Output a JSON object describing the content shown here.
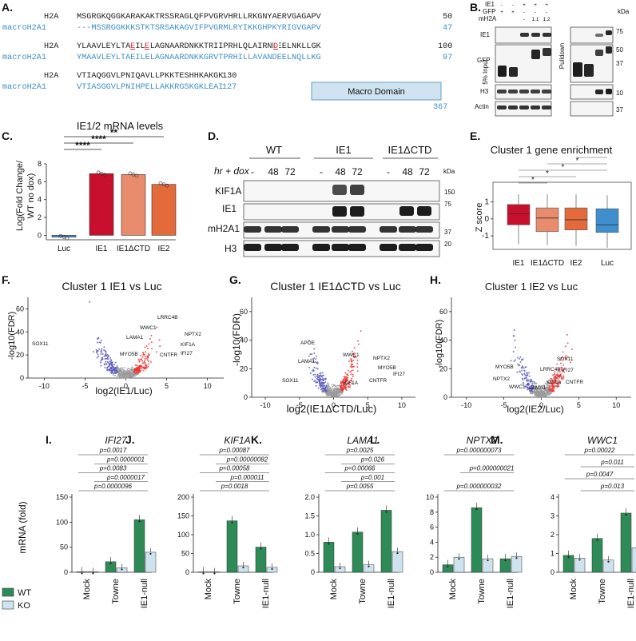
{
  "colors": {
    "h2a": "#222222",
    "macro": "#3e8ec9",
    "red_res": "#e0303b",
    "box_macro": "#cfe2ef",
    "luc": "#3f8fce",
    "ie1": "#c8102e",
    "ie1dctd": "#e98b6d",
    "ie2": "#e26a3b",
    "wt": "#2e8b57",
    "ko": "#cfe3ee",
    "volc_up": "#e63737",
    "volc_down": "#5a5ab8",
    "volc_ns": "#9a9a9a"
  },
  "panelA": {
    "label": "A.",
    "rows": [
      {
        "name": "H2A",
        "seq": "MSGRGKQGGKARAKAKTRSSRAGLQFPVGRVHRLLRKGNYAERVGAGAPV",
        "end": "50"
      },
      {
        "name": "macroH2A1",
        "seq": "---MSSRGGKKKSTKTSRSAKAGVIFPVGRMLRYIKKGHPKYRIGVGAPV",
        "end": "47"
      },
      {
        "name": "H2A",
        "seq": "YLAAVLEYLTAEILELAGNAARDNKKTRIIPRHLQLAIRNDEELNKLLGK",
        "end": "100"
      },
      {
        "name": "macroH2A1",
        "seq": "YMAAVLEYLTAEILELAGNAARDNKKGRVTPRHILLAVANDEELNQLLKG",
        "end": "97"
      },
      {
        "name": "H2A",
        "seq": "VTIAQGGVLPNIQAVLLPKKTESHHKAKGK",
        "end": "130"
      },
      {
        "name": "macroH2A1",
        "seq": "VTIASGGVLPNIHPELLAKKRGSKGKLEAI",
        "end": "127"
      }
    ],
    "macro_domain": "Macro Domain",
    "macro_end": "367"
  },
  "panelB": {
    "label": "B.",
    "row_ie1": "IE1",
    "row_gfp": "GFP",
    "row_mh2a": "mH2A",
    "signs_ie1": [
      "-",
      "-",
      "+",
      "+",
      "+"
    ],
    "signs_gfp": [
      "+",
      "+",
      "-",
      "-",
      "-"
    ],
    "signs_mh2a": [
      "",
      "",
      "-",
      "1.1",
      "1.2"
    ],
    "kda": "kDa",
    "bands": [
      "IE1",
      "GFP",
      "H3",
      "Actin"
    ],
    "input": "5% Input",
    "pulldown": "Pulldown",
    "markers": [
      "75",
      "50",
      "37",
      "10",
      "37"
    ]
  },
  "panelC": {
    "label": "C.",
    "chart_data": {
      "type": "bar",
      "title": "IE1/2 mRNA levels",
      "ylabel": "Log(Fold Change/ WT no dox)",
      "ylabel_l1": "Log(Fold Change/",
      "ylabel_l2": "WT no dox)",
      "categories": [
        "Luc",
        "IE1",
        "IE1ΔCTD",
        "IE2"
      ],
      "values": [
        -0.2,
        6.9,
        6.8,
        5.7
      ],
      "ylim": [
        -0.5,
        8
      ],
      "yticks": [
        "0",
        "2",
        "4",
        "6",
        "8"
      ],
      "sig": [
        "****",
        "****",
        "**"
      ]
    }
  },
  "panelD": {
    "label": "D.",
    "groups": [
      "WT",
      "IE1",
      "IE1ΔCTD"
    ],
    "hr_label": "hr + dox",
    "lanes": [
      "-",
      "48",
      "72",
      "-",
      "48",
      "72",
      "-",
      "48",
      "72"
    ],
    "kda": "kDa",
    "bands": [
      "KIF1A",
      "IE1",
      "mH2A1",
      "H3"
    ],
    "markers": [
      "150",
      "75",
      "37",
      "20"
    ]
  },
  "panelE": {
    "label": "E.",
    "chart_data": {
      "type": "box",
      "title": "Cluster 1 gene enrichment",
      "ylabel": "Z score",
      "categories": [
        "IE1",
        "IE1ΔCTD",
        "IE2",
        "Luc"
      ],
      "q1": [
        -0.35,
        -0.75,
        -0.65,
        -0.8
      ],
      "median": [
        0.3,
        0.05,
        -0.05,
        -0.35
      ],
      "q3": [
        0.85,
        0.65,
        0.65,
        0.6
      ],
      "whisker_low": [
        -1.5,
        -1.55,
        -1.6,
        -1.7
      ],
      "whisker_high": [
        1.45,
        1.45,
        1.45,
        1.4
      ],
      "yticks": [
        "1",
        "0",
        "-1"
      ],
      "sig": [
        "*",
        "*",
        "*",
        "*"
      ]
    }
  },
  "panelF": {
    "label": "F.",
    "chart_data": {
      "type": "scatter",
      "title": "Cluster 1 IE1 vs Luc",
      "xlabel": "log2(IE1/Luc)",
      "ylabel": "-log10(FDR)",
      "xticks": [
        "-10",
        "-5",
        "0",
        "5",
        "10"
      ],
      "yticks": [
        "0",
        "20",
        "40",
        "60"
      ],
      "genes": [
        "LRRC4B",
        "WWC1",
        "NPTX2",
        "LAMA1",
        "KIF1A",
        "SOX11",
        "IFI27",
        "MYO5B",
        "CNTFR"
      ]
    }
  },
  "panelG": {
    "label": "G.",
    "chart_data": {
      "type": "scatter",
      "title": "Cluster 1 IE1ΔCTD vs Luc",
      "xlabel": "log2(IE1ΔCTD/Luc)",
      "ylabel": "-log10(FDR)",
      "xticks": [
        "-10",
        "-5",
        "0",
        "5",
        "10"
      ],
      "yticks": [
        "0",
        "20",
        "40",
        "60"
      ],
      "genes": [
        "APOE",
        "WWC1",
        "LAMA1",
        "NPTX2",
        "MYO5B",
        "SOX11",
        "KIF1A",
        "CNTFR",
        "IFI27"
      ]
    }
  },
  "panelH": {
    "label": "H.",
    "chart_data": {
      "type": "scatter",
      "title": "Cluster 1 IE2 vs Luc",
      "xlabel": "log2(IE2/Luc)",
      "ylabel": "-log10(FDR)",
      "xticks": [
        "-10",
        "-5",
        "0",
        "5",
        "10"
      ],
      "yticks": [
        "0",
        "20",
        "40",
        "60"
      ],
      "genes": [
        "SOX11",
        "MYO5B",
        "LRRC4B",
        "IFI27",
        "NPTX2",
        "KIF1A",
        "CNTFR",
        "WWC1",
        "LAMA1"
      ]
    }
  },
  "bottom": {
    "ylabel": "mRNA (fold)",
    "legend": [
      "WT",
      "KO"
    ],
    "xcats": [
      "Mock",
      "Towne",
      "IE1-null"
    ],
    "panels": [
      {
        "label": "I.",
        "gene": "IFI27",
        "yticks": [
          "0",
          "50",
          "100",
          "150"
        ],
        "ymax": 150,
        "wt": [
          1,
          21,
          105
        ],
        "ko": [
          1,
          9,
          40
        ],
        "pvals": [
          "p=0.0017",
          "p=0.0000001",
          "p=0.0083",
          "p=0.0000017",
          "p=0.0000096"
        ]
      },
      {
        "label": "J.",
        "gene": "KIF1A",
        "yticks": [
          "0",
          "50",
          "100",
          "150",
          "200"
        ],
        "ymax": 200,
        "wt": [
          1,
          137,
          67
        ],
        "ko": [
          1,
          17,
          13
        ],
        "pvals": [
          "p=0.00087",
          "p=0.00000082",
          "p=0.00058",
          "p=0.000011",
          "p=0.0018"
        ]
      },
      {
        "label": "K.",
        "gene": "LAMA1",
        "yticks": [
          "0",
          "0.5",
          "1.0",
          "1.5",
          "2.0"
        ],
        "ymax": 2.0,
        "wt": [
          0.8,
          1.07,
          1.65
        ],
        "ko": [
          0.15,
          0.2,
          0.55
        ],
        "pvals": [
          "p=0.0025",
          "p=0.026",
          "p=0.00066",
          "p=0.001",
          "p=0.0055"
        ]
      },
      {
        "label": "L.",
        "gene": "NPTX2",
        "yticks": [
          "0",
          "2",
          "4",
          "6",
          "8",
          "10"
        ],
        "ymax": 10,
        "wt": [
          1,
          8.6,
          1.8
        ],
        "ko": [
          2,
          1.8,
          2.1
        ],
        "pvals": [
          "p=0.000000073",
          "p=0.000000021",
          "p=0.000000032"
        ]
      },
      {
        "label": "M.",
        "gene": "WWC1",
        "yticks": [
          "0",
          "1",
          "2",
          "3",
          "4"
        ],
        "ymax": 4,
        "wt": [
          0.9,
          1.8,
          3.15
        ],
        "ko": [
          0.75,
          0.65,
          1.3
        ],
        "pvals": [
          "p=0.00022",
          "p=0.011",
          "p=0.0047",
          "p=0.013"
        ]
      }
    ]
  }
}
